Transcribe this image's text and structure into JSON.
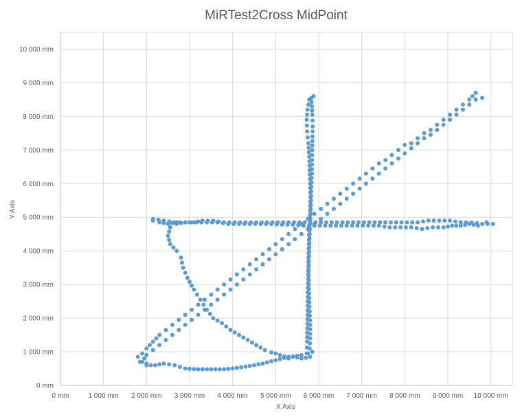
{
  "chart_data": {
    "type": "scatter",
    "title": "MiRTest2Cross MidPoint",
    "xlabel": "X Axis",
    "ylabel": "Y Axis",
    "xlim": [
      0,
      10500
    ],
    "ylim": [
      0,
      10500
    ],
    "x_ticks": [
      0,
      1000,
      2000,
      3000,
      4000,
      5000,
      6000,
      7000,
      8000,
      9000,
      10000
    ],
    "y_ticks": [
      0,
      1000,
      2000,
      3000,
      4000,
      5000,
      6000,
      7000,
      8000,
      9000,
      10000
    ],
    "x_tick_labels": [
      "0 mm",
      "1 000 mm",
      "2 000 mm",
      "3 000 mm",
      "4 000 mm",
      "5 000 mm",
      "6 000 mm",
      "7 000 mm",
      "8 000 mm",
      "9 000 mm",
      "10 000 mm"
    ],
    "y_tick_labels": [
      "0 mm",
      "1 000 mm",
      "2 000 mm",
      "3 000 mm",
      "4 000 mm",
      "5 000 mm",
      "6 000 mm",
      "7 000 mm",
      "8 000 mm",
      "9 000 mm",
      "10 000 mm"
    ],
    "grid": true,
    "legend": "none",
    "marker_color": "#5b9bd5",
    "series": [
      {
        "values": [
          [
            5720,
            950
          ],
          [
            5730,
            1300
          ],
          [
            5735,
            1700
          ],
          [
            5740,
            2100
          ],
          [
            5745,
            2500
          ],
          [
            5750,
            2900
          ],
          [
            5760,
            3300
          ],
          [
            5770,
            3700
          ],
          [
            5780,
            4100
          ],
          [
            5790,
            4500
          ],
          [
            5800,
            4800
          ],
          [
            5810,
            5100
          ],
          [
            5820,
            5500
          ],
          [
            5830,
            5900
          ],
          [
            5840,
            6300
          ],
          [
            5845,
            6700
          ],
          [
            5850,
            7000
          ],
          [
            5855,
            7400
          ],
          [
            5860,
            7700
          ],
          [
            5850,
            8050
          ],
          [
            5840,
            8300
          ],
          [
            5830,
            8550
          ],
          [
            5880,
            8600
          ],
          [
            5780,
            8500
          ],
          [
            5740,
            8200
          ],
          [
            5720,
            7900
          ],
          [
            5730,
            7550
          ],
          [
            5760,
            7200
          ],
          [
            5780,
            6800
          ],
          [
            5790,
            6400
          ],
          [
            5800,
            6000
          ],
          [
            5810,
            5600
          ],
          [
            5800,
            5200
          ],
          [
            5790,
            4900
          ],
          [
            5780,
            4600
          ],
          [
            5770,
            4200
          ],
          [
            5760,
            3800
          ],
          [
            5760,
            3400
          ],
          [
            5770,
            3000
          ],
          [
            5780,
            2600
          ],
          [
            5790,
            2200
          ],
          [
            5800,
            1800
          ],
          [
            5800,
            1400
          ],
          [
            5790,
            1100
          ],
          [
            5850,
            1000
          ],
          [
            5800,
            850
          ],
          [
            5700,
            820
          ],
          [
            5600,
            800
          ],
          [
            5500,
            830
          ],
          [
            5400,
            850
          ],
          [
            5300,
            800
          ],
          [
            5200,
            860
          ],
          [
            5100,
            900
          ],
          [
            5000,
            950
          ],
          [
            4900,
            980
          ],
          [
            4750,
            1050
          ],
          [
            4550,
            1200
          ],
          [
            4350,
            1350
          ],
          [
            4150,
            1500
          ],
          [
            3950,
            1650
          ],
          [
            3750,
            1850
          ],
          [
            3550,
            2000
          ],
          [
            3400,
            2250
          ],
          [
            3250,
            2550
          ],
          [
            3100,
            2850
          ],
          [
            2950,
            3200
          ],
          [
            2850,
            3500
          ],
          [
            2800,
            3800
          ],
          [
            2700,
            4000
          ],
          [
            2550,
            4200
          ],
          [
            2500,
            4450
          ],
          [
            2550,
            4700
          ],
          [
            2700,
            4800
          ],
          [
            2900,
            4850
          ],
          [
            3100,
            4850
          ],
          [
            3300,
            4900
          ],
          [
            3550,
            4900
          ],
          [
            3800,
            4850
          ],
          [
            4050,
            4850
          ],
          [
            4300,
            4850
          ],
          [
            4550,
            4850
          ],
          [
            4800,
            4850
          ],
          [
            5050,
            4850
          ],
          [
            5300,
            4850
          ],
          [
            5550,
            4850
          ],
          [
            5800,
            4850
          ],
          [
            6050,
            4850
          ],
          [
            6300,
            4850
          ],
          [
            6550,
            4850
          ],
          [
            6800,
            4850
          ],
          [
            7050,
            4850
          ],
          [
            7300,
            4850
          ],
          [
            7550,
            4850
          ],
          [
            7800,
            4850
          ],
          [
            8050,
            4850
          ],
          [
            8300,
            4850
          ],
          [
            8550,
            4900
          ],
          [
            8800,
            4900
          ],
          [
            9050,
            4900
          ],
          [
            9300,
            4850
          ],
          [
            9550,
            4850
          ],
          [
            9800,
            4800
          ],
          [
            10050,
            4800
          ],
          [
            9900,
            4850
          ],
          [
            9700,
            4750
          ],
          [
            9500,
            4800
          ],
          [
            9300,
            4750
          ],
          [
            9100,
            4750
          ],
          [
            8900,
            4700
          ],
          [
            8650,
            4700
          ],
          [
            8400,
            4650
          ],
          [
            8150,
            4700
          ],
          [
            7900,
            4700
          ],
          [
            7650,
            4700
          ],
          [
            7400,
            4750
          ],
          [
            7150,
            4750
          ],
          [
            6900,
            4750
          ],
          [
            6650,
            4750
          ],
          [
            6400,
            4750
          ],
          [
            6150,
            4750
          ],
          [
            5900,
            4750
          ],
          [
            5650,
            4750
          ],
          [
            5400,
            4780
          ],
          [
            5150,
            4780
          ],
          [
            4900,
            4800
          ],
          [
            4650,
            4800
          ],
          [
            4400,
            4800
          ],
          [
            4150,
            4800
          ],
          [
            3900,
            4800
          ],
          [
            3650,
            4850
          ],
          [
            3400,
            4850
          ],
          [
            3150,
            4850
          ],
          [
            2900,
            4850
          ],
          [
            2650,
            4850
          ],
          [
            2400,
            4900
          ],
          [
            2150,
            4950
          ],
          [
            2150,
            4900
          ],
          [
            2300,
            4850
          ],
          [
            2500,
            4800
          ],
          [
            2700,
            4850
          ],
          [
            1800,
            850
          ],
          [
            1900,
            700
          ],
          [
            2000,
            600
          ],
          [
            2200,
            600
          ],
          [
            2400,
            650
          ],
          [
            2650,
            600
          ],
          [
            2900,
            500
          ],
          [
            3200,
            480
          ],
          [
            3500,
            480
          ],
          [
            3800,
            480
          ],
          [
            4100,
            520
          ],
          [
            4400,
            580
          ],
          [
            4700,
            650
          ],
          [
            5000,
            750
          ],
          [
            5300,
            850
          ],
          [
            5600,
            900
          ],
          [
            5750,
            950
          ],
          [
            2000,
            900
          ],
          [
            2150,
            1050
          ],
          [
            2300,
            1200
          ],
          [
            2450,
            1350
          ],
          [
            2600,
            1500
          ],
          [
            2750,
            1650
          ],
          [
            2900,
            1800
          ],
          [
            3050,
            1950
          ],
          [
            3200,
            2100
          ],
          [
            3350,
            2250
          ],
          [
            3500,
            2400
          ],
          [
            3650,
            2550
          ],
          [
            3800,
            2700
          ],
          [
            3950,
            2850
          ],
          [
            4100,
            3000
          ],
          [
            4250,
            3150
          ],
          [
            4400,
            3300
          ],
          [
            4550,
            3450
          ],
          [
            4700,
            3600
          ],
          [
            4850,
            3750
          ],
          [
            5000,
            3900
          ],
          [
            5150,
            4050
          ],
          [
            5300,
            4200
          ],
          [
            5450,
            4350
          ],
          [
            5600,
            4500
          ],
          [
            5750,
            4650
          ],
          [
            5900,
            4800
          ],
          [
            6050,
            4950
          ],
          [
            6200,
            5100
          ],
          [
            6350,
            5250
          ],
          [
            6500,
            5400
          ],
          [
            6650,
            5550
          ],
          [
            6800,
            5700
          ],
          [
            6950,
            5850
          ],
          [
            7100,
            6000
          ],
          [
            7250,
            6150
          ],
          [
            7400,
            6300
          ],
          [
            7550,
            6450
          ],
          [
            7700,
            6600
          ],
          [
            7850,
            6750
          ],
          [
            8000,
            6900
          ],
          [
            8150,
            7050
          ],
          [
            8300,
            7200
          ],
          [
            8450,
            7350
          ],
          [
            8600,
            7450
          ],
          [
            8750,
            7600
          ],
          [
            8900,
            7750
          ],
          [
            9050,
            7900
          ],
          [
            9200,
            8050
          ],
          [
            9350,
            8200
          ],
          [
            9500,
            8350
          ],
          [
            9650,
            8500
          ],
          [
            9800,
            8550
          ],
          [
            9650,
            8700
          ],
          [
            9500,
            8500
          ],
          [
            9350,
            8350
          ],
          [
            9200,
            8200
          ],
          [
            9050,
            8050
          ],
          [
            8900,
            7900
          ],
          [
            8750,
            7750
          ],
          [
            8600,
            7600
          ],
          [
            8450,
            7500
          ],
          [
            8300,
            7350
          ],
          [
            8150,
            7200
          ],
          [
            8000,
            7150
          ],
          [
            7850,
            7000
          ],
          [
            7700,
            6850
          ],
          [
            7550,
            6700
          ],
          [
            7400,
            6600
          ],
          [
            7250,
            6450
          ],
          [
            7100,
            6300
          ],
          [
            6950,
            6150
          ],
          [
            6800,
            6000
          ],
          [
            6650,
            5850
          ],
          [
            6500,
            5700
          ],
          [
            6350,
            5550
          ],
          [
            6200,
            5400
          ],
          [
            6050,
            5250
          ],
          [
            5900,
            5100
          ],
          [
            5750,
            4950
          ],
          [
            5600,
            4800
          ],
          [
            5450,
            4650
          ],
          [
            5300,
            4500
          ],
          [
            5150,
            4350
          ],
          [
            5000,
            4200
          ],
          [
            4850,
            4050
          ],
          [
            4700,
            3900
          ],
          [
            4550,
            3750
          ],
          [
            4400,
            3600
          ],
          [
            4250,
            3450
          ],
          [
            4100,
            3300
          ],
          [
            3950,
            3150
          ],
          [
            3800,
            3000
          ],
          [
            3650,
            2850
          ],
          [
            3500,
            2700
          ],
          [
            3350,
            2550
          ],
          [
            3200,
            2400
          ],
          [
            3050,
            2250
          ],
          [
            2900,
            2100
          ],
          [
            2750,
            1950
          ],
          [
            2600,
            1800
          ],
          [
            2450,
            1650
          ],
          [
            2300,
            1500
          ],
          [
            2150,
            1300
          ],
          [
            2000,
            1100
          ],
          [
            1900,
            950
          ],
          [
            1950,
            800
          ],
          [
            1850,
            700
          ],
          [
            2000,
            650
          ]
        ]
      }
    ]
  }
}
